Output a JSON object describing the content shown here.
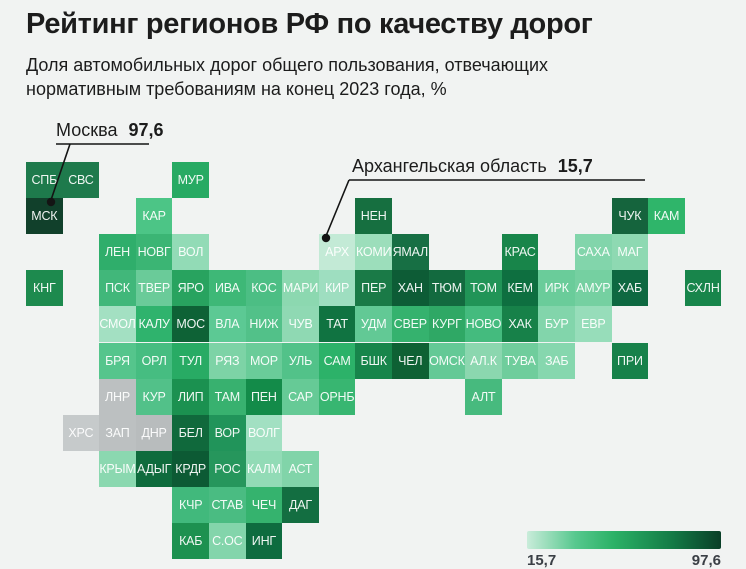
{
  "header": {
    "title": "Рейтинг регионов РФ по качеству дорог",
    "subtitle_line1": "Доля автомобильных дорог общего пользования, отвечающих",
    "subtitle_line2": "нормативным требованиям на конец 2023 года, %"
  },
  "annotations": {
    "moscow": {
      "label": "Москва",
      "value": "97,6",
      "target": "МСК"
    },
    "arkhangelsk": {
      "label": "Архангельская область",
      "value": "15,7",
      "target": "АРХ"
    }
  },
  "legend": {
    "min_label": "15,7",
    "max_label": "97,6",
    "min_color": "#c9ecda",
    "max_color": "#0a3e27"
  },
  "chart_data": {
    "type": "heatmap",
    "subtype": "tile-grid-cartogram",
    "title": "Рейтинг регионов РФ по качеству дорог",
    "subtitle": "Доля автомобильных дорог общего пользования, отвечающих нормативным требованиям на конец 2023 года, %",
    "value_range": [
      15.7,
      97.6
    ],
    "known_values": {
      "МСК": 97.6,
      "АРХ": 15.7
    },
    "legend": {
      "position": "bottom-right",
      "min_label": "15,7",
      "max_label": "97,6"
    },
    "tiles": [
      {
        "code": "СПБ",
        "col": 0,
        "row": 0,
        "color": "#1e7a4c"
      },
      {
        "code": "СВС",
        "col": 1,
        "row": 0,
        "color": "#1e7a4c"
      },
      {
        "code": "МУР",
        "col": 4,
        "row": 0,
        "color": "#27aa63"
      },
      {
        "code": "МСК",
        "col": 0,
        "row": 1,
        "color": "#11402b"
      },
      {
        "code": "КАР",
        "col": 3,
        "row": 1,
        "color": "#4cc586"
      },
      {
        "code": "НЕН",
        "col": 9,
        "row": 1,
        "color": "#166f40"
      },
      {
        "code": "ЧУК",
        "col": 16,
        "row": 1,
        "color": "#15643d"
      },
      {
        "code": "КАМ",
        "col": 17,
        "row": 1,
        "color": "#2fb56a"
      },
      {
        "code": "ЛЕН",
        "col": 2,
        "row": 2,
        "color": "#2fae6b"
      },
      {
        "code": "НОВГ",
        "col": 3,
        "row": 2,
        "color": "#3bb574"
      },
      {
        "code": "ВОЛ",
        "col": 4,
        "row": 2,
        "color": "#92dbb6"
      },
      {
        "code": "АРХ",
        "col": 8,
        "row": 2,
        "color": "#c3ead6"
      },
      {
        "code": "КОМИ",
        "col": 9,
        "row": 2,
        "color": "#9cdebb"
      },
      {
        "code": "ЯМАЛ",
        "col": 10,
        "row": 2,
        "color": "#176f44"
      },
      {
        "code": "КРАС",
        "col": 13,
        "row": 2,
        "color": "#18854a"
      },
      {
        "code": "САХА",
        "col": 15,
        "row": 2,
        "color": "#82d5ab"
      },
      {
        "code": "МАГ",
        "col": 16,
        "row": 2,
        "color": "#8ed9b2"
      },
      {
        "code": "КНГ",
        "col": 0,
        "row": 3,
        "color": "#1d8a4e"
      },
      {
        "code": "ПСК",
        "col": 2,
        "row": 3,
        "color": "#41b77a"
      },
      {
        "code": "ТВЕР",
        "col": 3,
        "row": 3,
        "color": "#6acb99"
      },
      {
        "code": "ЯРО",
        "col": 4,
        "row": 3,
        "color": "#28a35f"
      },
      {
        "code": "ИВА",
        "col": 5,
        "row": 3,
        "color": "#3eb877"
      },
      {
        "code": "КОС",
        "col": 6,
        "row": 3,
        "color": "#4cbe84"
      },
      {
        "code": "МАРИ",
        "col": 7,
        "row": 3,
        "color": "#8cd8b0"
      },
      {
        "code": "КИР",
        "col": 8,
        "row": 3,
        "color": "#9edec0"
      },
      {
        "code": "ПЕР",
        "col": 9,
        "row": 3,
        "color": "#1a7a47"
      },
      {
        "code": "ХАН",
        "col": 10,
        "row": 3,
        "color": "#0d5c36"
      },
      {
        "code": "ТЮМ",
        "col": 11,
        "row": 3,
        "color": "#136a3f"
      },
      {
        "code": "ТОМ",
        "col": 12,
        "row": 3,
        "color": "#219457"
      },
      {
        "code": "КЕМ",
        "col": 13,
        "row": 3,
        "color": "#0e6f40"
      },
      {
        "code": "ИРК",
        "col": 14,
        "row": 3,
        "color": "#6acc9a"
      },
      {
        "code": "АМУР",
        "col": 15,
        "row": 3,
        "color": "#75d0a1"
      },
      {
        "code": "ХАБ",
        "col": 16,
        "row": 3,
        "color": "#0e6841"
      },
      {
        "code": "СХЛН",
        "col": 18,
        "row": 3,
        "color": "#18854b"
      },
      {
        "code": "СМОЛ",
        "col": 2,
        "row": 4,
        "color": "#a3e0c2"
      },
      {
        "code": "КАЛУ",
        "col": 3,
        "row": 4,
        "color": "#2fb36d"
      },
      {
        "code": "МОС",
        "col": 4,
        "row": 4,
        "color": "#0e6236"
      },
      {
        "code": "ВЛА",
        "col": 5,
        "row": 4,
        "color": "#5cc994"
      },
      {
        "code": "НИЖ",
        "col": 6,
        "row": 4,
        "color": "#52c189"
      },
      {
        "code": "ЧУВ",
        "col": 7,
        "row": 4,
        "color": "#8fd9b3"
      },
      {
        "code": "ТАТ",
        "col": 8,
        "row": 4,
        "color": "#107341"
      },
      {
        "code": "УДМ",
        "col": 9,
        "row": 4,
        "color": "#62c995"
      },
      {
        "code": "СВЕР",
        "col": 10,
        "row": 4,
        "color": "#35b26e"
      },
      {
        "code": "КУРГ",
        "col": 11,
        "row": 4,
        "color": "#2fa865"
      },
      {
        "code": "НОВО",
        "col": 12,
        "row": 4,
        "color": "#44bb7e"
      },
      {
        "code": "ХАК",
        "col": 13,
        "row": 4,
        "color": "#178149"
      },
      {
        "code": "БУР",
        "col": 14,
        "row": 4,
        "color": "#82d5ab"
      },
      {
        "code": "ЕВР",
        "col": 15,
        "row": 4,
        "color": "#97ddba"
      },
      {
        "code": "БРЯ",
        "col": 2,
        "row": 5,
        "color": "#55c58c"
      },
      {
        "code": "ОРЛ",
        "col": 3,
        "row": 5,
        "color": "#46bd81"
      },
      {
        "code": "ТУЛ",
        "col": 4,
        "row": 5,
        "color": "#28ab64"
      },
      {
        "code": "РЯЗ",
        "col": 5,
        "row": 5,
        "color": "#7dd3a6"
      },
      {
        "code": "МОР",
        "col": 6,
        "row": 5,
        "color": "#6acc99"
      },
      {
        "code": "УЛЬ",
        "col": 7,
        "row": 5,
        "color": "#52c289"
      },
      {
        "code": "САМ",
        "col": 8,
        "row": 5,
        "color": "#2cb269"
      },
      {
        "code": "БШК",
        "col": 9,
        "row": 5,
        "color": "#17854b"
      },
      {
        "code": "ЧЕЛ",
        "col": 10,
        "row": 5,
        "color": "#0e6134"
      },
      {
        "code": "ОМСК",
        "col": 11,
        "row": 5,
        "color": "#64c996"
      },
      {
        "code": "АЛ.К",
        "col": 12,
        "row": 5,
        "color": "#8bd7af"
      },
      {
        "code": "ТУВА",
        "col": 13,
        "row": 5,
        "color": "#6fcd9c"
      },
      {
        "code": "ЗАБ",
        "col": 14,
        "row": 5,
        "color": "#86d7ae"
      },
      {
        "code": "ПРИ",
        "col": 16,
        "row": 5,
        "color": "#17814a"
      },
      {
        "code": "ЛНР",
        "col": 2,
        "row": 6,
        "color": "#bcc0c1"
      },
      {
        "code": "КУР",
        "col": 3,
        "row": 6,
        "color": "#52c189"
      },
      {
        "code": "ЛИП",
        "col": 4,
        "row": 6,
        "color": "#1b9150"
      },
      {
        "code": "ТАМ",
        "col": 5,
        "row": 6,
        "color": "#38b16f"
      },
      {
        "code": "ПЕН",
        "col": 6,
        "row": 6,
        "color": "#138b49"
      },
      {
        "code": "САР",
        "col": 7,
        "row": 6,
        "color": "#66ca96"
      },
      {
        "code": "ОРНБ",
        "col": 8,
        "row": 6,
        "color": "#38b671"
      },
      {
        "code": "АЛТ",
        "col": 12,
        "row": 6,
        "color": "#47ba7e"
      },
      {
        "code": "ХРС",
        "col": 1,
        "row": 7,
        "color": "#c6cacb"
      },
      {
        "code": "ЗАП",
        "col": 2,
        "row": 7,
        "color": "#bcc0c1"
      },
      {
        "code": "ДНР",
        "col": 3,
        "row": 7,
        "color": "#b8bcbd"
      },
      {
        "code": "БЕЛ",
        "col": 4,
        "row": 7,
        "color": "#10693c"
      },
      {
        "code": "ВОР",
        "col": 5,
        "row": 7,
        "color": "#21945a"
      },
      {
        "code": "ВОЛГ",
        "col": 6,
        "row": 7,
        "color": "#a2e0c2"
      },
      {
        "code": "КРЫМ",
        "col": 2,
        "row": 8,
        "color": "#8bd8b0"
      },
      {
        "code": "АДЫГ",
        "col": 3,
        "row": 8,
        "color": "#0f6b3d"
      },
      {
        "code": "КРДР",
        "col": 4,
        "row": 8,
        "color": "#0c5a34"
      },
      {
        "code": "РОС",
        "col": 5,
        "row": 8,
        "color": "#26965c"
      },
      {
        "code": "КАЛМ",
        "col": 6,
        "row": 8,
        "color": "#92dbb6"
      },
      {
        "code": "АСТ",
        "col": 7,
        "row": 8,
        "color": "#81d4a9"
      },
      {
        "code": "КЧР",
        "col": 4,
        "row": 9,
        "color": "#41b97c"
      },
      {
        "code": "СТАВ",
        "col": 5,
        "row": 9,
        "color": "#4abc82"
      },
      {
        "code": "ЧЕЧ",
        "col": 6,
        "row": 9,
        "color": "#35b36e"
      },
      {
        "code": "ДАГ",
        "col": 7,
        "row": 9,
        "color": "#136e41"
      },
      {
        "code": "КАБ",
        "col": 4,
        "row": 10,
        "color": "#1d9150"
      },
      {
        "code": "С.ОС",
        "col": 5,
        "row": 10,
        "color": "#83d5ab"
      },
      {
        "code": "ИНГ",
        "col": 6,
        "row": 10,
        "color": "#0e6c3f"
      }
    ]
  }
}
